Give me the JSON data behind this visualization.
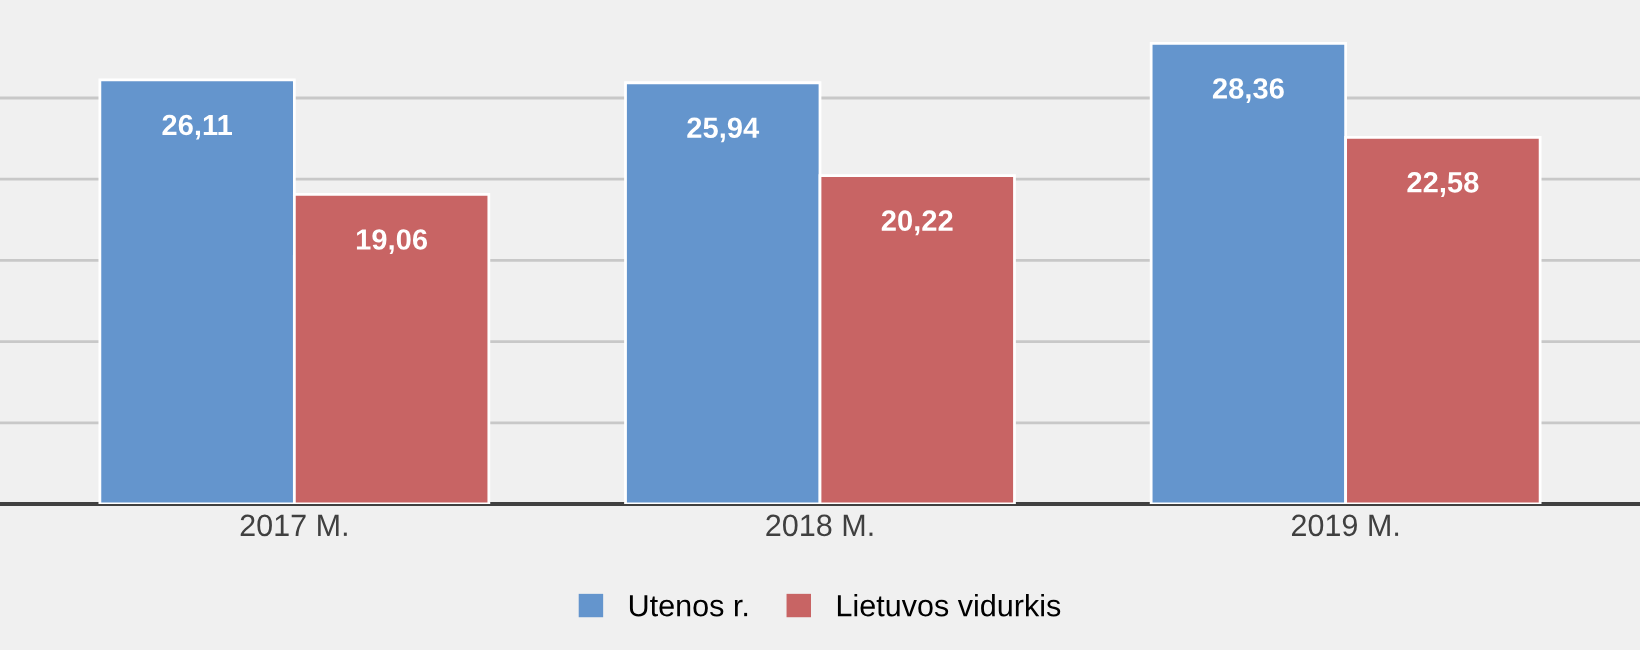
{
  "chart_data": {
    "type": "bar",
    "categories": [
      "2017 M.",
      "2018 M.",
      "2019 M."
    ],
    "series": [
      {
        "name": "Utenos r.",
        "color": "#6495cd",
        "values": [
          26.11,
          25.94,
          28.36
        ],
        "value_labels": [
          "26,11",
          "25,94",
          "28,36"
        ]
      },
      {
        "name": "Lietuvos vidurkis",
        "color": "#c86464",
        "values": [
          19.06,
          20.22,
          22.58
        ],
        "value_labels": [
          "19,06",
          "20,22",
          "22,58"
        ]
      }
    ],
    "tick_labels": "x",
    "grid": "y",
    "legend": "bottom"
  }
}
